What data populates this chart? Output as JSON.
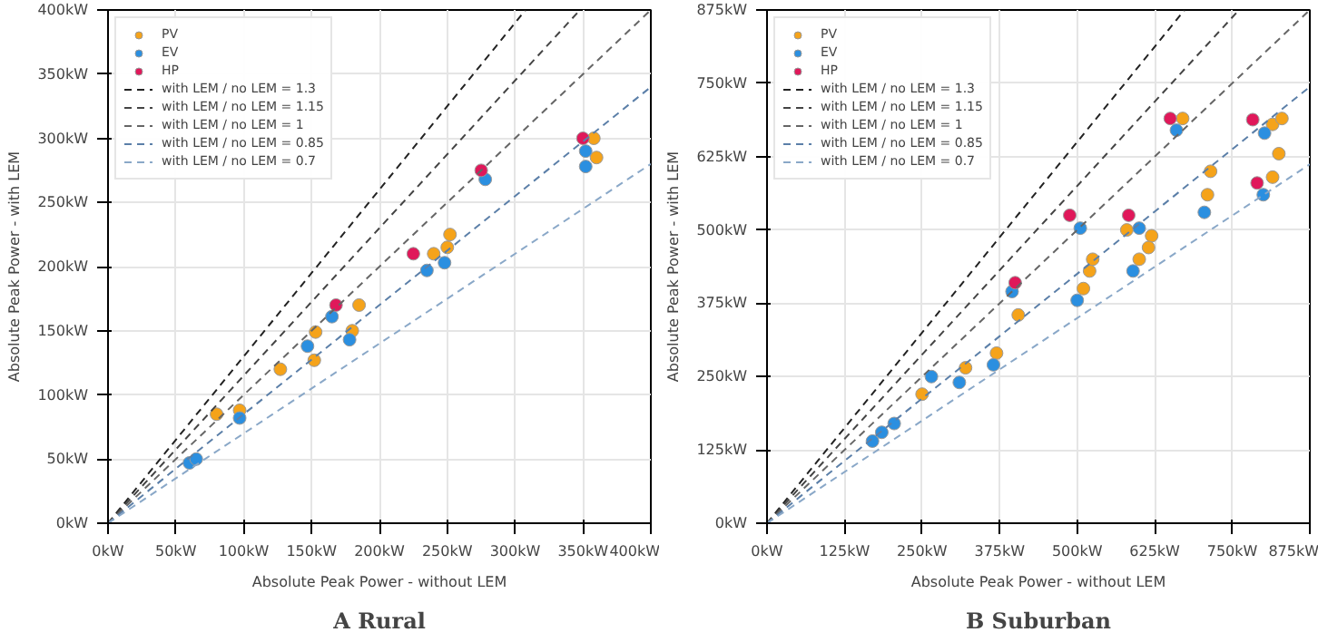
{
  "chart_data": [
    {
      "type": "scatter",
      "title": "A Rural",
      "xlabel": "Absolute Peak Power - without LEM",
      "ylabel": "Absolute Peak Power - with LEM",
      "xlim": [
        0,
        400
      ],
      "ylim": [
        0,
        400
      ],
      "xticks": [
        {
          "value": 0,
          "label": "0kW"
        },
        {
          "value": 50,
          "label": "50kW"
        },
        {
          "value": 100,
          "label": "100kW"
        },
        {
          "value": 150,
          "label": "150kW"
        },
        {
          "value": 200,
          "label": "200kW"
        },
        {
          "value": 250,
          "label": "250kW"
        },
        {
          "value": 300,
          "label": "300kW"
        },
        {
          "value": 350,
          "label": "350kW"
        },
        {
          "value": 400,
          "label": "400kW"
        }
      ],
      "yticks": [
        {
          "value": 0,
          "label": "0kW"
        },
        {
          "value": 50,
          "label": "50kW"
        },
        {
          "value": 100,
          "label": "100kW"
        },
        {
          "value": 150,
          "label": "150kW"
        },
        {
          "value": 200,
          "label": "200kW"
        },
        {
          "value": 250,
          "label": "250kW"
        },
        {
          "value": 300,
          "label": "300kW"
        },
        {
          "value": 350,
          "label": "350kW"
        },
        {
          "value": 400,
          "label": "400kW"
        }
      ],
      "grid": true,
      "legend": "top left",
      "marker": "circle",
      "series": [
        {
          "name": "PV",
          "color": "#f5a31a",
          "x": [
            80,
            97,
            127,
            153,
            152,
            185,
            180,
            240,
            252,
            250,
            358,
            360
          ],
          "values": [
            85,
            88,
            120,
            149,
            127,
            170,
            150,
            210,
            225,
            215,
            300,
            285
          ]
        },
        {
          "name": "EV",
          "color": "#2b8fe0",
          "x": [
            60,
            65,
            97,
            147,
            165,
            178,
            235,
            248,
            278,
            352,
            352
          ],
          "values": [
            47,
            50,
            82,
            138,
            161,
            143,
            197,
            203,
            268,
            290,
            278
          ]
        },
        {
          "name": "HP",
          "color": "#e0185a",
          "x": [
            168,
            225,
            275,
            350
          ],
          "values": [
            170,
            210,
            275,
            300
          ]
        },
        {
          "name": "with LEM / no LEM = 1.3",
          "type": "line",
          "line_style": "dashed",
          "marker": "none",
          "color": "#222222",
          "x": [
            0,
            307.7
          ],
          "values": [
            0,
            400
          ]
        },
        {
          "name": "with LEM / no LEM = 1.15",
          "type": "line",
          "line_style": "dashed",
          "marker": "none",
          "color": "#444444",
          "x": [
            0,
            347.8
          ],
          "values": [
            0,
            400
          ]
        },
        {
          "name": "with LEM / no LEM = 1",
          "type": "line",
          "line_style": "dashed",
          "marker": "none",
          "color": "#666666",
          "x": [
            0,
            400
          ],
          "values": [
            0,
            400
          ]
        },
        {
          "name": "with LEM / no LEM = 0.85",
          "type": "line",
          "line_style": "dashed",
          "marker": "none",
          "color": "#5b7fa8",
          "x": [
            0,
            400
          ],
          "values": [
            0,
            340
          ]
        },
        {
          "name": "with LEM / no LEM = 0.7",
          "type": "line",
          "line_style": "dashed",
          "marker": "none",
          "color": "#8aa8c8",
          "x": [
            0,
            400
          ],
          "values": [
            0,
            280
          ]
        }
      ]
    },
    {
      "type": "scatter",
      "title": "B Suburban",
      "xlabel": "Absolute Peak Power - without LEM",
      "ylabel": "Absolute Peak Power - with LEM",
      "xlim": [
        0,
        875
      ],
      "ylim": [
        0,
        875
      ],
      "xticks": [
        {
          "value": 0,
          "label": "0kW"
        },
        {
          "value": 125,
          "label": "125kW"
        },
        {
          "value": 250,
          "label": "250kW"
        },
        {
          "value": 375,
          "label": "375kW"
        },
        {
          "value": 500,
          "label": "500kW"
        },
        {
          "value": 625,
          "label": "625kW"
        },
        {
          "value": 750,
          "label": "750kW"
        },
        {
          "value": 875,
          "label": "875kW"
        }
      ],
      "yticks": [
        {
          "value": 0,
          "label": "0kW"
        },
        {
          "value": 125,
          "label": "125kW"
        },
        {
          "value": 250,
          "label": "250kW"
        },
        {
          "value": 375,
          "label": "375kW"
        },
        {
          "value": 500,
          "label": "500kW"
        },
        {
          "value": 625,
          "label": "625kW"
        },
        {
          "value": 750,
          "label": "750kW"
        },
        {
          "value": 875,
          "label": "875kW"
        }
      ],
      "grid": true,
      "legend": "top left",
      "marker": "circle",
      "series": [
        {
          "name": "PV",
          "color": "#f5a31a",
          "x": [
            250,
            320,
            370,
            405,
            510,
            520,
            525,
            580,
            620,
            600,
            615,
            670,
            710,
            715,
            815,
            830,
            825,
            815
          ],
          "values": [
            220,
            265,
            290,
            355,
            400,
            430,
            450,
            500,
            490,
            450,
            470,
            690,
            560,
            600,
            680,
            690,
            630,
            590
          ]
        },
        {
          "name": "EV",
          "color": "#2b8fe0",
          "x": [
            170,
            185,
            205,
            265,
            310,
            365,
            395,
            505,
            500,
            600,
            590,
            660,
            705,
            802,
            800
          ],
          "values": [
            140,
            155,
            170,
            250,
            240,
            270,
            395,
            503,
            380,
            503,
            430,
            670,
            530,
            665,
            560
          ]
        },
        {
          "name": "HP",
          "color": "#e0185a",
          "x": [
            400,
            488,
            583,
            650,
            783,
            790
          ],
          "values": [
            410,
            525,
            525,
            690,
            688,
            580
          ]
        },
        {
          "name": "with LEM / no LEM = 1.3",
          "type": "line",
          "line_style": "dashed",
          "marker": "none",
          "color": "#222222",
          "x": [
            0,
            673.1
          ],
          "values": [
            0,
            875
          ]
        },
        {
          "name": "with LEM / no LEM = 1.15",
          "type": "line",
          "line_style": "dashed",
          "marker": "none",
          "color": "#444444",
          "x": [
            0,
            760.9
          ],
          "values": [
            0,
            875
          ]
        },
        {
          "name": "with LEM / no LEM = 1",
          "type": "line",
          "line_style": "dashed",
          "marker": "none",
          "color": "#666666",
          "x": [
            0,
            875
          ],
          "values": [
            0,
            875
          ]
        },
        {
          "name": "with LEM / no LEM = 0.85",
          "type": "line",
          "line_style": "dashed",
          "marker": "none",
          "color": "#5b7fa8",
          "x": [
            0,
            875
          ],
          "values": [
            0,
            744
          ]
        },
        {
          "name": "with LEM / no LEM = 0.7",
          "type": "line",
          "line_style": "dashed",
          "marker": "none",
          "color": "#8aa8c8",
          "x": [
            0,
            875
          ],
          "values": [
            0,
            612
          ]
        }
      ]
    }
  ]
}
